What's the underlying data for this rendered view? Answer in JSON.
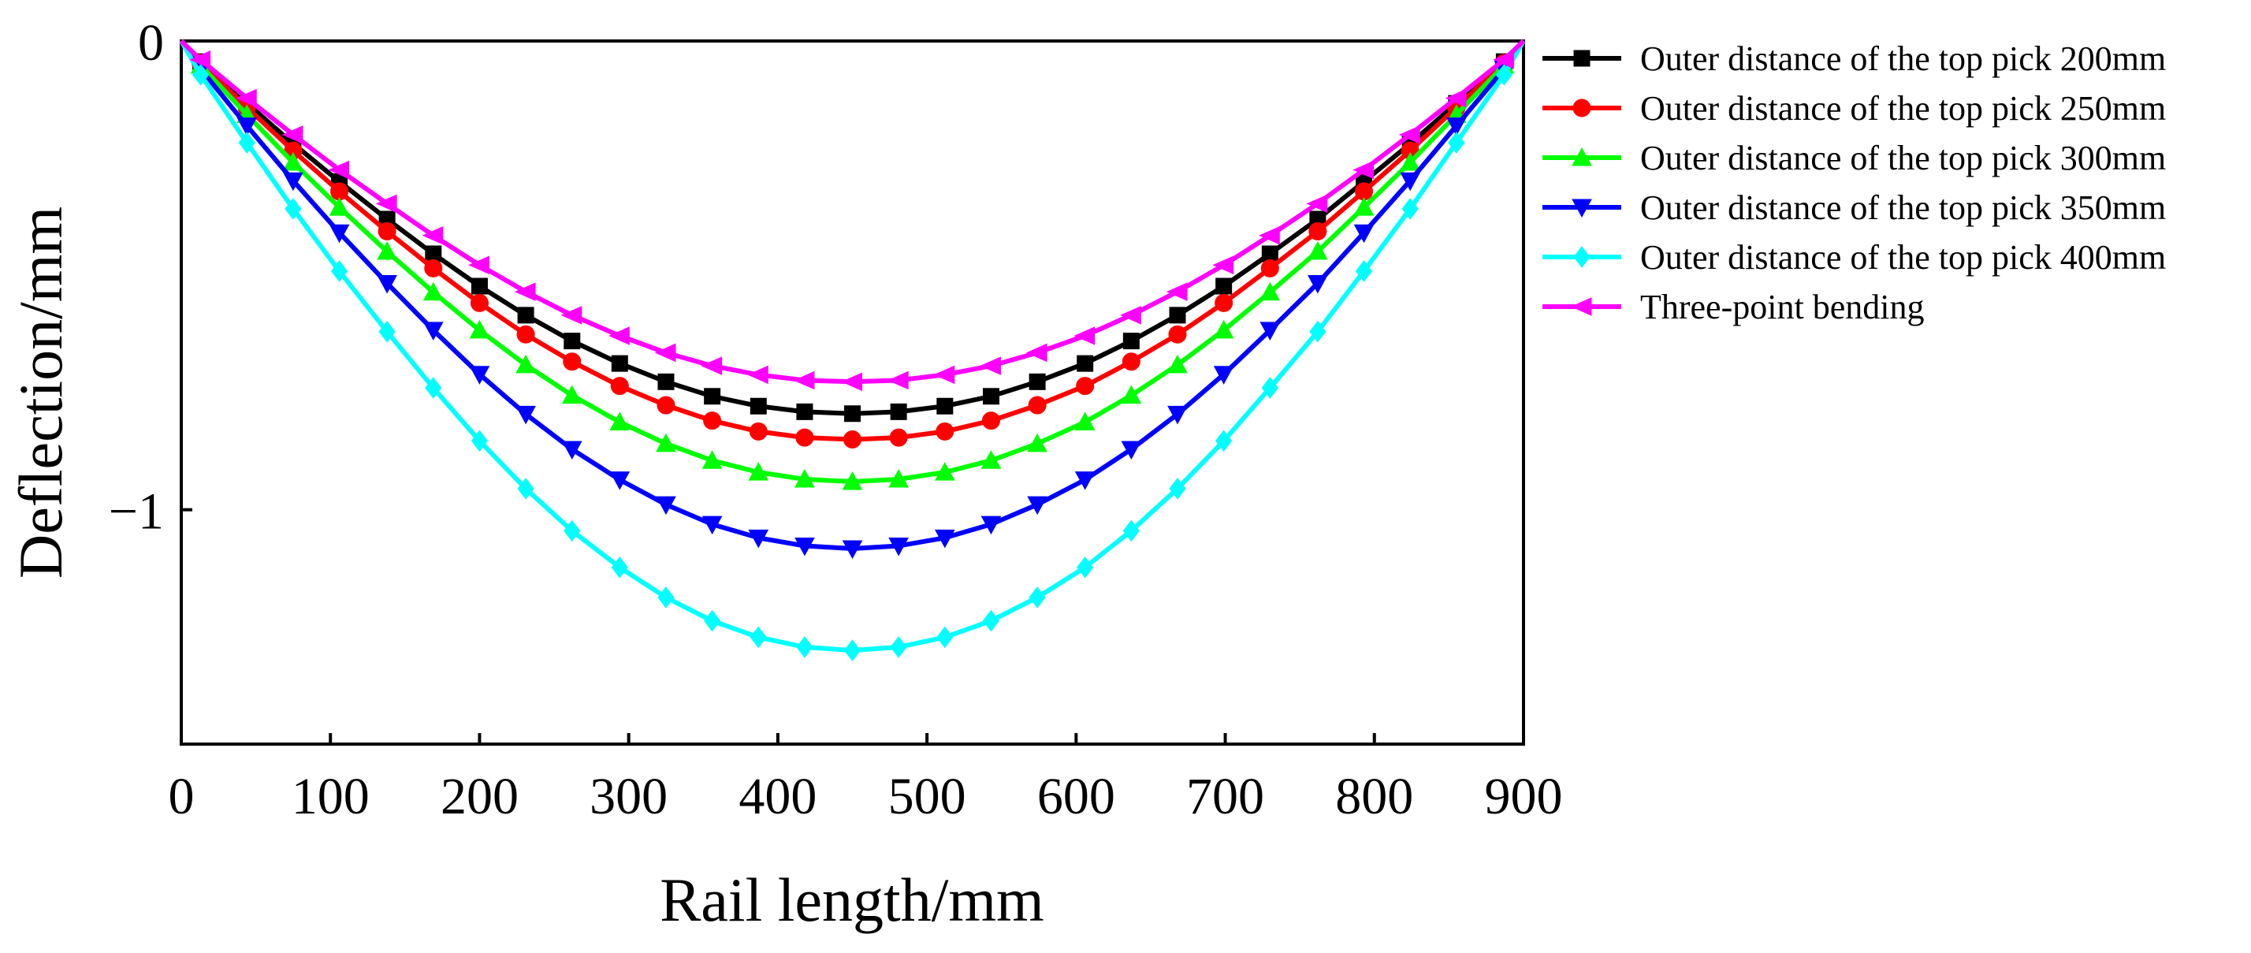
{
  "chart_data": {
    "type": "line",
    "title": "",
    "xlabel": "Rail length/mm",
    "ylabel": "Deflection/mm",
    "xlim": [
      0,
      900
    ],
    "ylim": [
      -1.5,
      0
    ],
    "xticks": [
      0,
      100,
      200,
      300,
      400,
      500,
      600,
      700,
      800,
      900
    ],
    "xtick_labels": [
      "0",
      "100",
      "200",
      "300",
      "400",
      "500",
      "600",
      "700",
      "800",
      "900"
    ],
    "yticks": [
      0,
      -1
    ],
    "ytick_labels": [
      "0",
      "−1"
    ],
    "grid": false,
    "legend_position": "outside-right-top",
    "x": [
      0,
      13,
      44,
      75,
      106,
      138,
      169,
      200,
      231,
      262,
      294,
      325,
      356,
      387,
      418,
      450,
      481,
      512,
      543,
      574,
      606,
      637,
      668,
      699,
      730,
      762,
      793,
      824,
      855,
      887,
      900
    ],
    "series": [
      {
        "name": "Outer distance of the top pick 200mm",
        "color": "#000000",
        "marker": "square",
        "values": [
          0,
          -0.044,
          -0.133,
          -0.219,
          -0.3,
          -0.38,
          -0.454,
          -0.523,
          -0.585,
          -0.64,
          -0.688,
          -0.727,
          -0.758,
          -0.779,
          -0.791,
          -0.795,
          -0.791,
          -0.779,
          -0.758,
          -0.727,
          -0.688,
          -0.64,
          -0.585,
          -0.523,
          -0.454,
          -0.38,
          -0.3,
          -0.219,
          -0.133,
          -0.044,
          0
        ]
      },
      {
        "name": "Outer distance of the top pick 250mm",
        "color": "#ff0000",
        "marker": "circle",
        "values": [
          0,
          -0.047,
          -0.142,
          -0.234,
          -0.321,
          -0.406,
          -0.485,
          -0.559,
          -0.626,
          -0.684,
          -0.736,
          -0.777,
          -0.81,
          -0.833,
          -0.846,
          -0.85,
          -0.846,
          -0.833,
          -0.81,
          -0.777,
          -0.736,
          -0.684,
          -0.626,
          -0.559,
          -0.485,
          -0.406,
          -0.321,
          -0.234,
          -0.142,
          -0.047,
          0
        ]
      },
      {
        "name": "Outer distance of the top pick 300mm",
        "color": "#00ff00",
        "marker": "triangle-up",
        "values": [
          0,
          -0.052,
          -0.157,
          -0.259,
          -0.355,
          -0.449,
          -0.536,
          -0.617,
          -0.691,
          -0.756,
          -0.813,
          -0.859,
          -0.895,
          -0.92,
          -0.935,
          -0.94,
          -0.935,
          -0.92,
          -0.895,
          -0.859,
          -0.813,
          -0.756,
          -0.691,
          -0.617,
          -0.536,
          -0.449,
          -0.355,
          -0.259,
          -0.157,
          -0.052,
          0
        ]
      },
      {
        "name": "Outer distance of the top pick 350mm",
        "color": "#0000ff",
        "marker": "triangle-down",
        "values": [
          0,
          -0.06,
          -0.181,
          -0.298,
          -0.409,
          -0.517,
          -0.617,
          -0.711,
          -0.796,
          -0.871,
          -0.936,
          -0.989,
          -1.031,
          -1.06,
          -1.077,
          -1.083,
          -1.077,
          -1.06,
          -1.031,
          -0.989,
          -0.936,
          -0.871,
          -0.796,
          -0.711,
          -0.617,
          -0.517,
          -0.409,
          -0.298,
          -0.181,
          -0.06,
          0
        ]
      },
      {
        "name": "Outer distance of the top pick 400mm",
        "color": "#00ffff",
        "marker": "diamond",
        "values": [
          0,
          -0.072,
          -0.217,
          -0.358,
          -0.491,
          -0.62,
          -0.74,
          -0.853,
          -0.955,
          -1.045,
          -1.123,
          -1.187,
          -1.237,
          -1.272,
          -1.293,
          -1.3,
          -1.293,
          -1.272,
          -1.237,
          -1.187,
          -1.123,
          -1.045,
          -0.955,
          -0.853,
          -0.74,
          -0.62,
          -0.491,
          -0.358,
          -0.217,
          -0.072,
          0
        ]
      },
      {
        "name": "Three-point bending",
        "color": "#ff00ff",
        "marker": "triangle-left",
        "values": [
          0,
          -0.04,
          -0.122,
          -0.2,
          -0.275,
          -0.347,
          -0.415,
          -0.478,
          -0.535,
          -0.585,
          -0.629,
          -0.665,
          -0.693,
          -0.712,
          -0.724,
          -0.727,
          -0.724,
          -0.712,
          -0.693,
          -0.665,
          -0.629,
          -0.585,
          -0.535,
          -0.478,
          -0.415,
          -0.347,
          -0.275,
          -0.2,
          -0.122,
          -0.04,
          0
        ]
      }
    ]
  }
}
